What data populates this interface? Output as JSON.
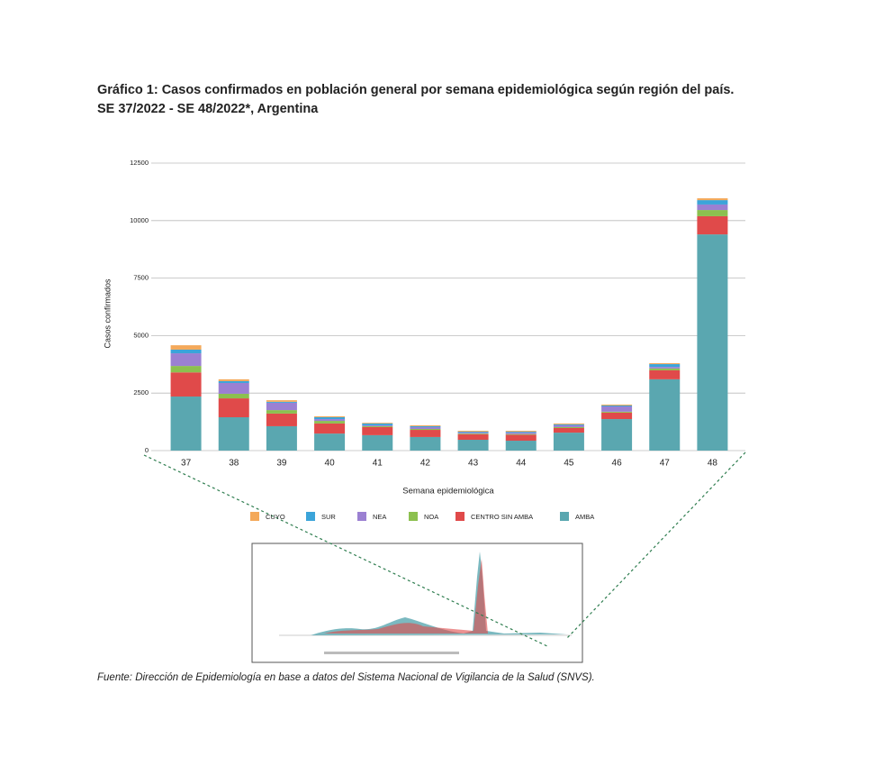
{
  "chart_data": {
    "type": "stacked_bar",
    "title": "Gráfico 1: Casos confirmados en población general por semana epidemiológica según región del país.",
    "subtitle": "SE 37/2022 - SE 48/2022*, Argentina",
    "x_label": "Semana epidemiológica",
    "y_label": "Casos confirmados",
    "source": "Fuente: Dirección de Epidemiología en base a datos del Sistema Nacional de Vigilancia de la Salud (SNVS).",
    "categories": [
      "37",
      "38",
      "39",
      "40",
      "41",
      "42",
      "43",
      "44",
      "45",
      "46",
      "47",
      "48"
    ],
    "series": [
      {
        "name": "AMBA",
        "color": "#5aa7b0",
        "values": [
          2350,
          1450,
          1060,
          740,
          670,
          590,
          470,
          430,
          780,
          1370,
          3100,
          9400
        ]
      },
      {
        "name": "CENTRO SIN AMBA",
        "color": "#e04a4a",
        "values": [
          1050,
          820,
          550,
          440,
          350,
          310,
          240,
          260,
          200,
          280,
          390,
          790
        ]
      },
      {
        "name": "NOA",
        "color": "#8cc04f",
        "values": [
          280,
          200,
          150,
          110,
          40,
          40,
          30,
          30,
          40,
          40,
          80,
          270
        ]
      },
      {
        "name": "NEA",
        "color": "#9b80d2",
        "values": [
          550,
          470,
          320,
          80,
          40,
          80,
          40,
          60,
          80,
          230,
          70,
          240
        ]
      },
      {
        "name": "SUR",
        "color": "#3ba4d9",
        "values": [
          160,
          80,
          40,
          80,
          80,
          40,
          40,
          40,
          40,
          40,
          120,
          190
        ]
      },
      {
        "name": "CUYO",
        "color": "#f4a95a",
        "values": [
          190,
          80,
          70,
          40,
          30,
          40,
          40,
          40,
          40,
          40,
          40,
          80
        ]
      }
    ],
    "ylim": [
      0,
      12500
    ],
    "yticks": [
      0,
      2500,
      5000,
      7500,
      10000,
      12500
    ],
    "grid": true
  }
}
